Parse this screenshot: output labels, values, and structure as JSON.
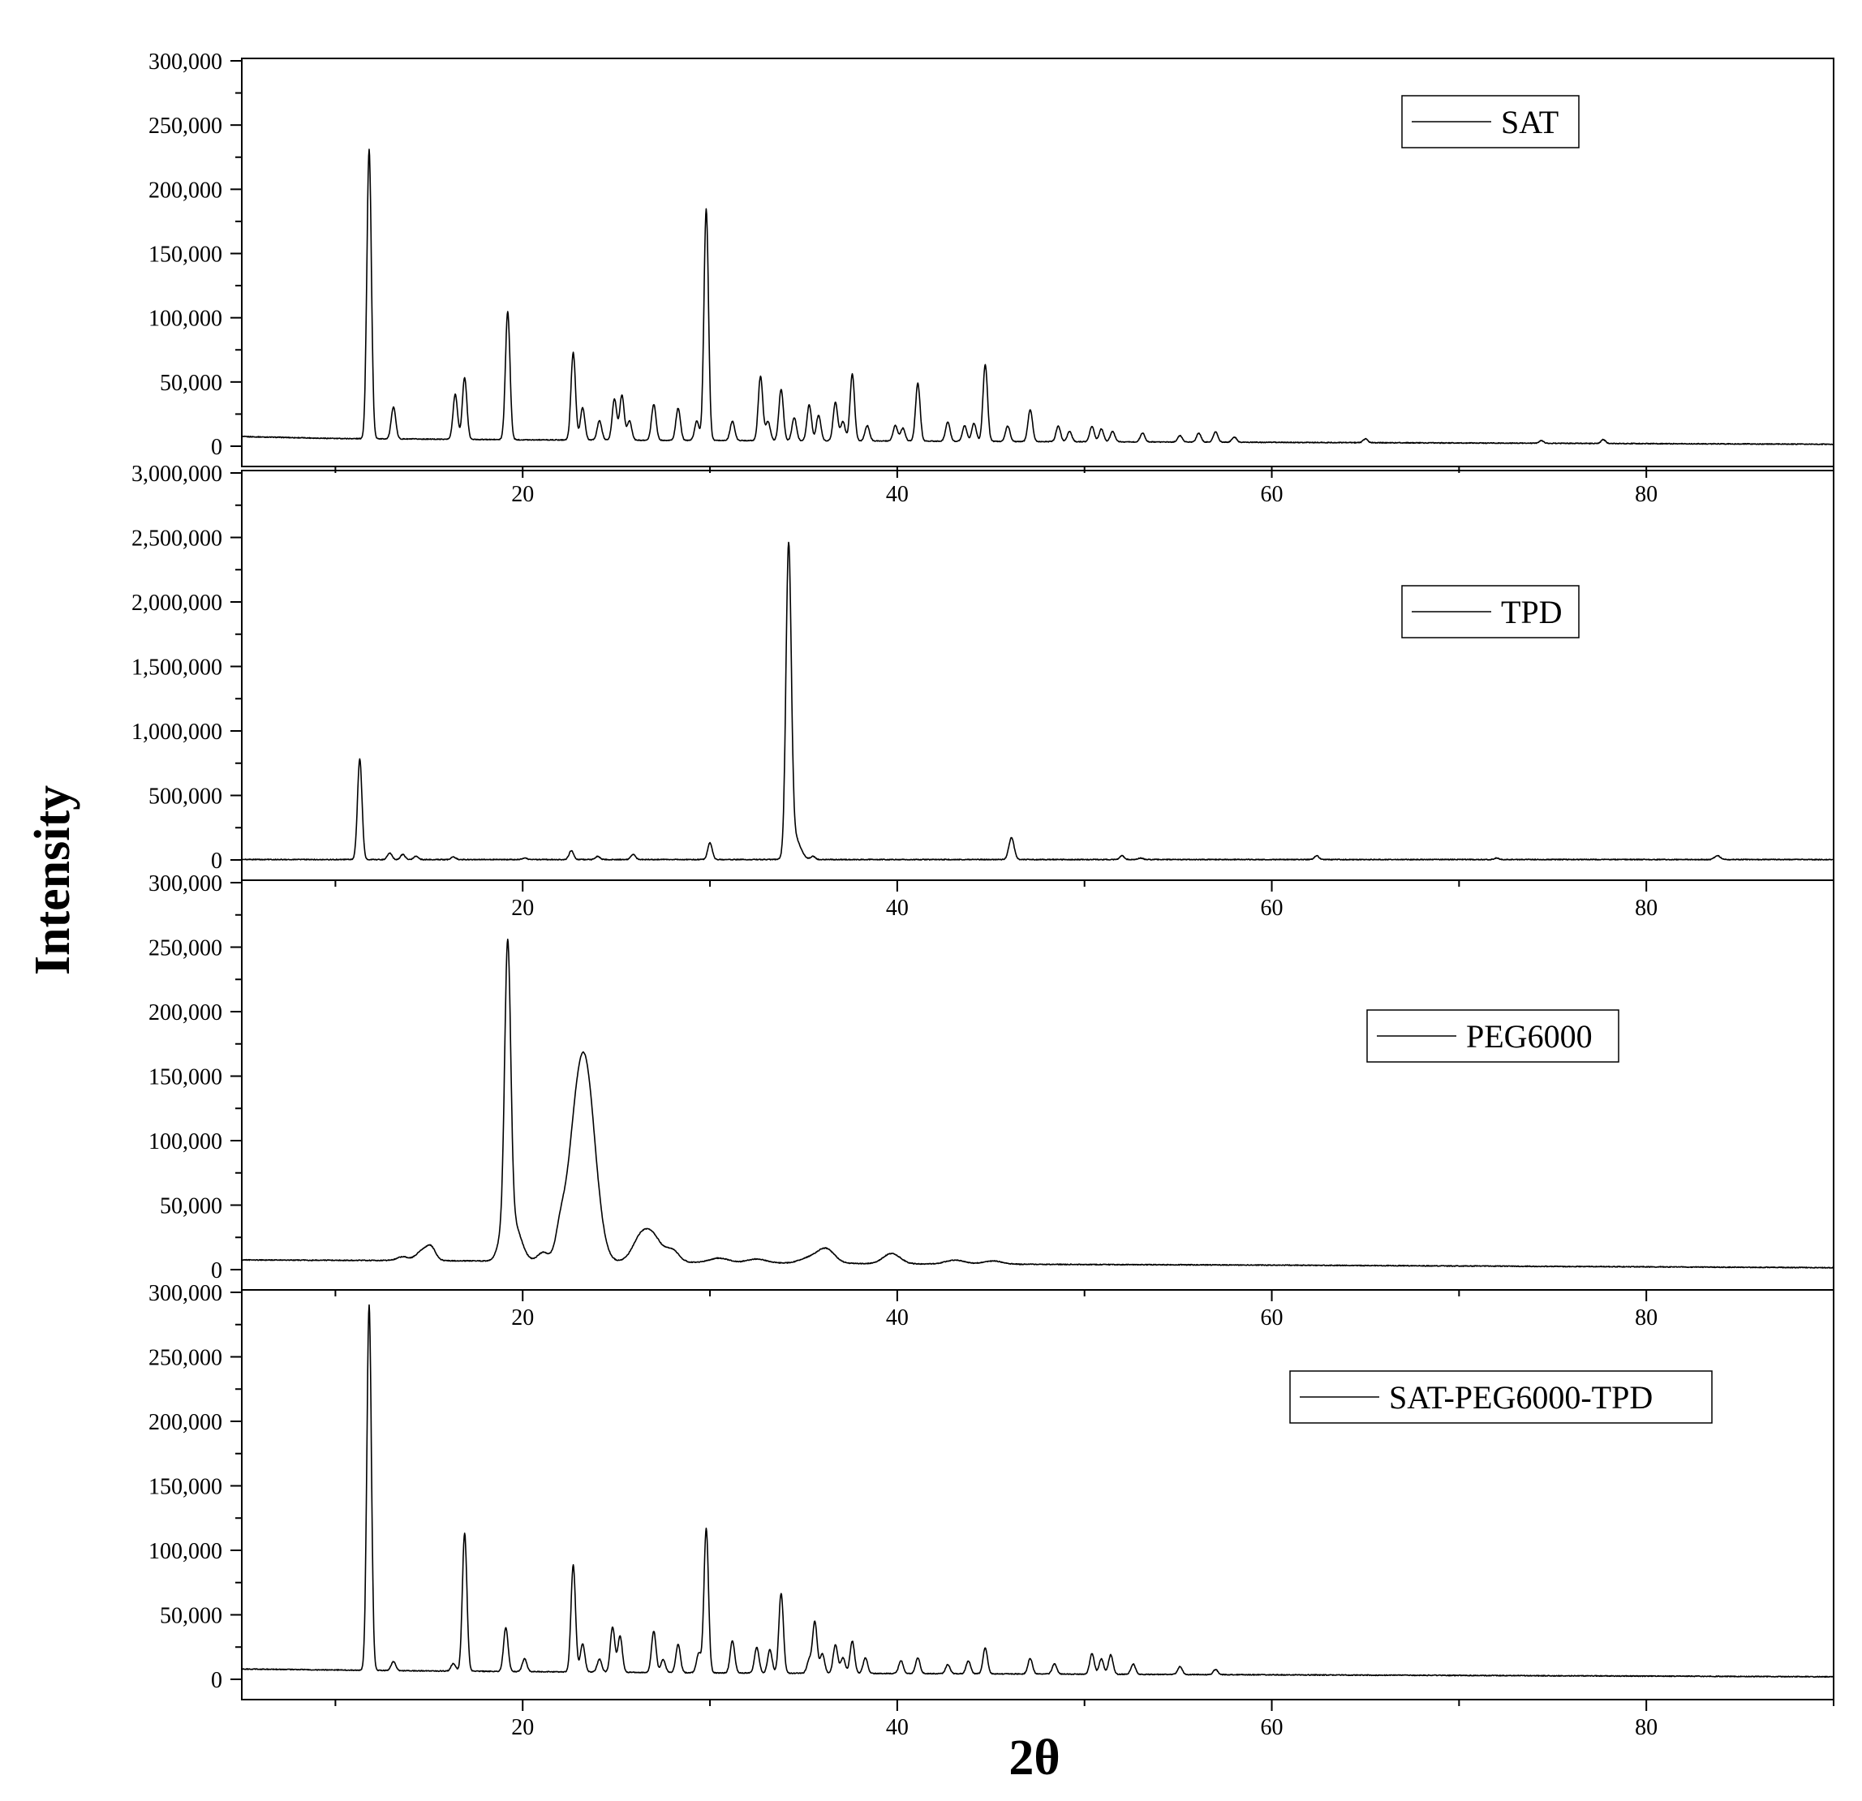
{
  "chart_data": {
    "type": "line",
    "xlabel": "2θ",
    "ylabel": "Intensity",
    "xlim": [
      5,
      90
    ],
    "x_ticks": [
      20,
      40,
      60,
      80
    ],
    "panels": [
      {
        "legend": "SAT",
        "legend_position": "top-right",
        "ylim": [
          0,
          300000
        ],
        "y_ticks": [
          0,
          50000,
          100000,
          150000,
          200000,
          250000,
          300000
        ],
        "y_tick_labels": [
          "0",
          "50,000",
          "100,000",
          "150,000",
          "200,000",
          "250,000",
          "300,000"
        ],
        "baseline": [
          [
            5,
            7500
          ],
          [
            10,
            6000
          ],
          [
            15,
            5500
          ],
          [
            20,
            5000
          ],
          [
            30,
            4500
          ],
          [
            40,
            4000
          ],
          [
            50,
            3500
          ],
          [
            60,
            3000
          ],
          [
            70,
            2500
          ],
          [
            80,
            2000
          ],
          [
            90,
            1500
          ]
        ],
        "peaks": [
          [
            11.8,
            225000,
            0.12
          ],
          [
            13.1,
            25000,
            0.12
          ],
          [
            16.4,
            35000,
            0.12
          ],
          [
            16.9,
            48000,
            0.12
          ],
          [
            19.2,
            100000,
            0.12
          ],
          [
            22.7,
            68000,
            0.12
          ],
          [
            23.2,
            25000,
            0.12
          ],
          [
            24.1,
            15000,
            0.12
          ],
          [
            24.9,
            32000,
            0.12
          ],
          [
            25.3,
            35000,
            0.12
          ],
          [
            25.7,
            15000,
            0.12
          ],
          [
            27.0,
            28000,
            0.12
          ],
          [
            28.3,
            25000,
            0.12
          ],
          [
            29.3,
            15000,
            0.12
          ],
          [
            29.8,
            180000,
            0.12
          ],
          [
            31.2,
            15000,
            0.12
          ],
          [
            32.7,
            50000,
            0.12
          ],
          [
            33.1,
            15000,
            0.12
          ],
          [
            33.8,
            40000,
            0.12
          ],
          [
            34.5,
            18000,
            0.12
          ],
          [
            35.3,
            28000,
            0.12
          ],
          [
            35.8,
            20000,
            0.12
          ],
          [
            36.7,
            30000,
            0.12
          ],
          [
            37.1,
            15000,
            0.12
          ],
          [
            37.6,
            52000,
            0.12
          ],
          [
            38.4,
            12000,
            0.12
          ],
          [
            39.9,
            12000,
            0.12
          ],
          [
            40.3,
            10000,
            0.12
          ],
          [
            41.1,
            45000,
            0.12
          ],
          [
            42.7,
            15000,
            0.12
          ],
          [
            43.6,
            12000,
            0.12
          ],
          [
            44.1,
            14000,
            0.12
          ],
          [
            44.7,
            60000,
            0.12
          ],
          [
            45.9,
            12000,
            0.12
          ],
          [
            47.1,
            25000,
            0.12
          ],
          [
            48.6,
            12000,
            0.12
          ],
          [
            49.2,
            8000,
            0.12
          ],
          [
            50.4,
            12000,
            0.12
          ],
          [
            50.9,
            10000,
            0.12
          ],
          [
            51.5,
            8000,
            0.12
          ],
          [
            53.1,
            7000,
            0.12
          ],
          [
            55.1,
            5000,
            0.12
          ],
          [
            56.1,
            7000,
            0.12
          ],
          [
            57.0,
            8000,
            0.12
          ],
          [
            58.0,
            4000,
            0.12
          ],
          [
            65.0,
            3000,
            0.12
          ],
          [
            74.4,
            2000,
            0.12
          ],
          [
            77.7,
            3000,
            0.12
          ]
        ]
      },
      {
        "legend": "TPD",
        "legend_position": "top-right",
        "ylim": [
          0,
          3000000
        ],
        "y_ticks": [
          0,
          500000,
          1000000,
          1500000,
          2000000,
          2500000,
          3000000
        ],
        "y_tick_labels": [
          "0",
          "500,000",
          "1,000,000",
          "1,500,000",
          "2,000,000",
          "2,500,000",
          "3,000,000"
        ],
        "baseline": [
          [
            5,
            3000
          ],
          [
            90,
            3000
          ]
        ],
        "peaks": [
          [
            11.3,
            780000,
            0.12
          ],
          [
            12.9,
            50000,
            0.12
          ],
          [
            13.6,
            40000,
            0.12
          ],
          [
            14.3,
            25000,
            0.12
          ],
          [
            16.3,
            20000,
            0.12
          ],
          [
            20.1,
            12000,
            0.12
          ],
          [
            22.6,
            70000,
            0.12
          ],
          [
            24.0,
            25000,
            0.12
          ],
          [
            25.9,
            40000,
            0.12
          ],
          [
            30.0,
            130000,
            0.12
          ],
          [
            34.2,
            2350000,
            0.14
          ],
          [
            34.5,
            180000,
            0.3
          ],
          [
            35.5,
            25000,
            0.12
          ],
          [
            46.1,
            170000,
            0.14
          ],
          [
            52.0,
            30000,
            0.12
          ],
          [
            53.0,
            12000,
            0.12
          ],
          [
            62.4,
            30000,
            0.12
          ],
          [
            72.0,
            12000,
            0.12
          ],
          [
            83.8,
            30000,
            0.15
          ]
        ]
      },
      {
        "legend": "PEG6000",
        "legend_position": "top-right",
        "ylim": [
          0,
          300000
        ],
        "y_ticks": [
          0,
          50000,
          100000,
          150000,
          200000,
          250000,
          300000
        ],
        "y_tick_labels": [
          "0",
          "50,000",
          "100,000",
          "150,000",
          "200,000",
          "250,000",
          "300,000"
        ],
        "baseline": [
          [
            5,
            7500
          ],
          [
            15,
            7000
          ],
          [
            25,
            6000
          ],
          [
            40,
            4500
          ],
          [
            60,
            3500
          ],
          [
            90,
            1500
          ]
        ],
        "peaks": [
          [
            13.6,
            3000,
            0.3
          ],
          [
            14.6,
            7000,
            0.3
          ],
          [
            15.1,
            10000,
            0.25
          ],
          [
            18.9,
            14000,
            0.25
          ],
          [
            19.2,
            220000,
            0.16
          ],
          [
            19.5,
            30000,
            0.4
          ],
          [
            21.1,
            7000,
            0.3
          ],
          [
            22.0,
            20000,
            0.25
          ],
          [
            22.6,
            30000,
            0.4
          ],
          [
            23.3,
            155000,
            0.55
          ],
          [
            26.3,
            18000,
            0.45
          ],
          [
            27.0,
            17000,
            0.45
          ],
          [
            28.0,
            9000,
            0.35
          ],
          [
            30.5,
            3500,
            0.5
          ],
          [
            32.5,
            3000,
            0.5
          ],
          [
            35.3,
            4000,
            0.5
          ],
          [
            36.2,
            11000,
            0.45
          ],
          [
            39.7,
            8000,
            0.45
          ],
          [
            43.1,
            3000,
            0.5
          ],
          [
            45.1,
            2500,
            0.5
          ]
        ]
      },
      {
        "legend": "SAT-PEG6000-TPD",
        "legend_position": "top-right",
        "ylim": [
          0,
          300000
        ],
        "y_ticks": [
          0,
          50000,
          100000,
          150000,
          200000,
          250000,
          300000
        ],
        "y_tick_labels": [
          "0",
          "50,000",
          "100,000",
          "150,000",
          "200,000",
          "250,000",
          "300,000"
        ],
        "baseline": [
          [
            5,
            8000
          ],
          [
            15,
            6500
          ],
          [
            30,
            5000
          ],
          [
            50,
            4000
          ],
          [
            70,
            3000
          ],
          [
            90,
            2000
          ]
        ],
        "peaks": [
          [
            11.8,
            283000,
            0.12
          ],
          [
            13.1,
            7000,
            0.12
          ],
          [
            16.3,
            6000,
            0.12
          ],
          [
            16.9,
            107000,
            0.12
          ],
          [
            19.1,
            34000,
            0.12
          ],
          [
            20.1,
            10000,
            0.12
          ],
          [
            22.7,
            83000,
            0.12
          ],
          [
            23.2,
            22000,
            0.12
          ],
          [
            24.1,
            10000,
            0.12
          ],
          [
            24.8,
            35000,
            0.12
          ],
          [
            25.2,
            28000,
            0.12
          ],
          [
            27.0,
            32000,
            0.12
          ],
          [
            27.5,
            10000,
            0.12
          ],
          [
            28.3,
            22000,
            0.12
          ],
          [
            29.4,
            15000,
            0.12
          ],
          [
            29.8,
            112000,
            0.12
          ],
          [
            31.2,
            25000,
            0.12
          ],
          [
            32.5,
            20000,
            0.12
          ],
          [
            33.2,
            18000,
            0.12
          ],
          [
            33.8,
            62000,
            0.12
          ],
          [
            35.3,
            10000,
            0.12
          ],
          [
            35.6,
            40000,
            0.12
          ],
          [
            36.0,
            15000,
            0.12
          ],
          [
            36.7,
            22000,
            0.12
          ],
          [
            37.1,
            12000,
            0.12
          ],
          [
            37.6,
            25000,
            0.12
          ],
          [
            38.3,
            12000,
            0.12
          ],
          [
            40.2,
            10000,
            0.12
          ],
          [
            41.1,
            12000,
            0.12
          ],
          [
            42.7,
            7000,
            0.12
          ],
          [
            43.8,
            10000,
            0.12
          ],
          [
            44.7,
            20000,
            0.12
          ],
          [
            47.1,
            12000,
            0.12
          ],
          [
            48.4,
            8000,
            0.12
          ],
          [
            50.4,
            16000,
            0.12
          ],
          [
            50.9,
            12000,
            0.12
          ],
          [
            51.4,
            15000,
            0.12
          ],
          [
            52.6,
            8000,
            0.12
          ],
          [
            55.1,
            6000,
            0.12
          ],
          [
            57.0,
            4000,
            0.12
          ]
        ]
      }
    ]
  }
}
